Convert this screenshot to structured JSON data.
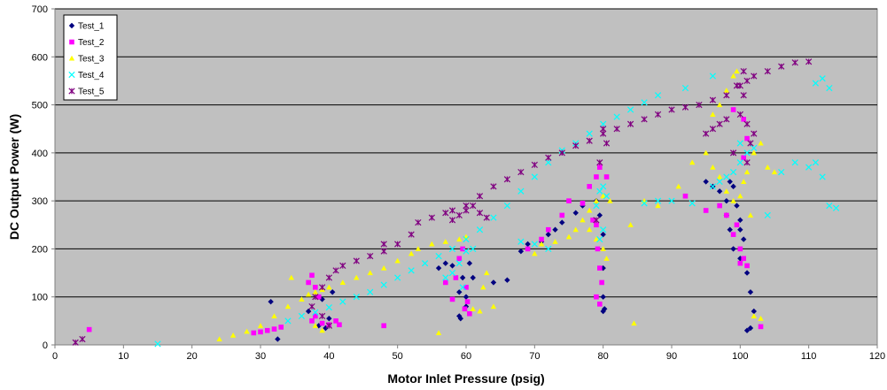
{
  "chart_data": {
    "type": "scatter",
    "title": "",
    "xlabel": "Motor Inlet Pressure (psig)",
    "ylabel": "DC Output Power (W)",
    "xlim": [
      0,
      120
    ],
    "ylim": [
      0,
      700
    ],
    "xticks": [
      0,
      10,
      20,
      30,
      40,
      50,
      60,
      70,
      80,
      90,
      100,
      110,
      120
    ],
    "yticks": [
      0,
      100,
      200,
      300,
      400,
      500,
      600,
      700
    ],
    "grid": "horizontal",
    "plot_background": "#c0c0c0",
    "legend_position": "top-left",
    "series": [
      {
        "name": "Test_1",
        "color": "#000080",
        "marker": "diamond",
        "points": [
          [
            32.5,
            12
          ],
          [
            31.5,
            90
          ],
          [
            37,
            70
          ],
          [
            38.5,
            40
          ],
          [
            39.5,
            35
          ],
          [
            40,
            55
          ],
          [
            39,
            95
          ],
          [
            40.5,
            110
          ],
          [
            56,
            160
          ],
          [
            57,
            170
          ],
          [
            58,
            165
          ],
          [
            59,
            110
          ],
          [
            59.5,
            140
          ],
          [
            60,
            100
          ],
          [
            59,
            60
          ],
          [
            59.2,
            55
          ],
          [
            60,
            80
          ],
          [
            61,
            140
          ],
          [
            60.5,
            170
          ],
          [
            64,
            130
          ],
          [
            66,
            135
          ],
          [
            68,
            195
          ],
          [
            69,
            210
          ],
          [
            71,
            215
          ],
          [
            72,
            230
          ],
          [
            73,
            240
          ],
          [
            74,
            255
          ],
          [
            76,
            275
          ],
          [
            77,
            290
          ],
          [
            79,
            300
          ],
          [
            79.5,
            270
          ],
          [
            80,
            230
          ],
          [
            80,
            160
          ],
          [
            80,
            100
          ],
          [
            80.2,
            75
          ],
          [
            80,
            70
          ],
          [
            95,
            340
          ],
          [
            96,
            330
          ],
          [
            97,
            320
          ],
          [
            98,
            300
          ],
          [
            98.5,
            340
          ],
          [
            99,
            330
          ],
          [
            98,
            270
          ],
          [
            98.5,
            240
          ],
          [
            99,
            200
          ],
          [
            100,
            240
          ],
          [
            100.5,
            220
          ],
          [
            100,
            180
          ],
          [
            101,
            150
          ],
          [
            101.5,
            110
          ],
          [
            102,
            70
          ],
          [
            101,
            30
          ],
          [
            101.5,
            35
          ],
          [
            100,
            260
          ],
          [
            99.5,
            290
          ]
        ]
      },
      {
        "name": "Test_2",
        "color": "#ff00ff",
        "marker": "square",
        "points": [
          [
            5,
            32
          ],
          [
            29,
            25
          ],
          [
            30,
            27
          ],
          [
            31,
            30
          ],
          [
            32,
            33
          ],
          [
            33,
            37
          ],
          [
            37,
            130
          ],
          [
            37.5,
            145
          ],
          [
            38,
            120
          ],
          [
            38.5,
            100
          ],
          [
            38,
            60
          ],
          [
            37.5,
            50
          ],
          [
            39,
            45
          ],
          [
            40,
            42
          ],
          [
            41,
            50
          ],
          [
            41.5,
            42
          ],
          [
            48,
            40
          ],
          [
            57,
            130
          ],
          [
            58,
            95
          ],
          [
            58.5,
            140
          ],
          [
            59,
            180
          ],
          [
            59.5,
            200
          ],
          [
            60,
            120
          ],
          [
            60.2,
            90
          ],
          [
            60.5,
            65
          ],
          [
            59.8,
            75
          ],
          [
            69,
            200
          ],
          [
            71,
            220
          ],
          [
            72,
            240
          ],
          [
            74,
            270
          ],
          [
            75,
            300
          ],
          [
            77,
            295
          ],
          [
            78,
            330
          ],
          [
            79,
            350
          ],
          [
            79.5,
            370
          ],
          [
            78.5,
            260
          ],
          [
            79,
            250
          ],
          [
            79.2,
            200
          ],
          [
            79.5,
            160
          ],
          [
            79.8,
            130
          ],
          [
            79,
            100
          ],
          [
            79.5,
            85
          ],
          [
            80.5,
            350
          ],
          [
            92,
            310
          ],
          [
            95,
            280
          ],
          [
            97,
            290
          ],
          [
            98,
            270
          ],
          [
            99,
            230
          ],
          [
            99.5,
            250
          ],
          [
            100,
            200
          ],
          [
            100.5,
            180
          ],
          [
            100,
            170
          ],
          [
            101,
            165
          ],
          [
            99,
            490
          ],
          [
            100.5,
            470
          ],
          [
            101,
            430
          ],
          [
            100.5,
            390
          ],
          [
            103,
            38
          ]
        ]
      },
      {
        "name": "Test_3",
        "color": "#ffff00",
        "marker": "triangle",
        "points": [
          [
            24,
            12
          ],
          [
            26,
            20
          ],
          [
            28,
            28
          ],
          [
            30,
            40
          ],
          [
            32,
            60
          ],
          [
            34,
            80
          ],
          [
            36,
            95
          ],
          [
            37,
            105
          ],
          [
            38,
            110
          ],
          [
            39,
            115
          ],
          [
            40,
            120
          ],
          [
            42,
            130
          ],
          [
            44,
            140
          ],
          [
            46,
            150
          ],
          [
            48,
            160
          ],
          [
            50,
            175
          ],
          [
            52,
            190
          ],
          [
            53,
            200
          ],
          [
            55,
            210
          ],
          [
            57,
            215
          ],
          [
            59,
            220
          ],
          [
            60,
            225
          ],
          [
            34.5,
            140
          ],
          [
            38,
            40
          ],
          [
            39,
            30
          ],
          [
            56,
            25
          ],
          [
            61,
            75
          ],
          [
            62,
            70
          ],
          [
            62.5,
            120
          ],
          [
            63,
            150
          ],
          [
            64,
            80
          ],
          [
            70,
            190
          ],
          [
            71,
            210
          ],
          [
            73,
            215
          ],
          [
            75,
            225
          ],
          [
            76,
            240
          ],
          [
            77,
            260
          ],
          [
            78,
            280
          ],
          [
            79,
            300
          ],
          [
            80,
            310
          ],
          [
            81,
            300
          ],
          [
            78,
            240
          ],
          [
            79,
            220
          ],
          [
            80,
            200
          ],
          [
            80.5,
            180
          ],
          [
            84,
            250
          ],
          [
            84.5,
            45
          ],
          [
            86,
            300
          ],
          [
            88,
            290
          ],
          [
            91,
            330
          ],
          [
            93,
            380
          ],
          [
            95,
            400
          ],
          [
            96,
            370
          ],
          [
            97,
            350
          ],
          [
            98,
            320
          ],
          [
            99,
            300
          ],
          [
            100,
            310
          ],
          [
            100.5,
            340
          ],
          [
            101,
            360
          ],
          [
            102,
            400
          ],
          [
            103,
            420
          ],
          [
            104,
            370
          ],
          [
            105,
            360
          ],
          [
            101.5,
            270
          ],
          [
            102,
            60
          ],
          [
            103,
            55
          ],
          [
            96,
            480
          ],
          [
            97,
            500
          ],
          [
            98,
            530
          ],
          [
            99,
            560
          ],
          [
            99.5,
            570
          ]
        ]
      },
      {
        "name": "Test_4",
        "color": "#00ffff",
        "marker": "x",
        "points": [
          [
            15,
            2
          ],
          [
            34,
            50
          ],
          [
            36,
            60
          ],
          [
            38,
            68
          ],
          [
            40,
            78
          ],
          [
            42,
            90
          ],
          [
            44,
            100
          ],
          [
            46,
            110
          ],
          [
            48,
            125
          ],
          [
            50,
            140
          ],
          [
            52,
            155
          ],
          [
            54,
            170
          ],
          [
            56,
            185
          ],
          [
            58,
            200
          ],
          [
            60,
            220
          ],
          [
            62,
            240
          ],
          [
            64,
            265
          ],
          [
            66,
            290
          ],
          [
            68,
            320
          ],
          [
            70,
            350
          ],
          [
            72,
            380
          ],
          [
            74,
            405
          ],
          [
            76,
            420
          ],
          [
            78,
            440
          ],
          [
            80,
            460
          ],
          [
            82,
            475
          ],
          [
            84,
            490
          ],
          [
            86,
            505
          ],
          [
            88,
            520
          ],
          [
            92,
            535
          ],
          [
            96,
            560
          ],
          [
            57,
            140
          ],
          [
            58,
            150
          ],
          [
            59,
            170
          ],
          [
            59.5,
            120
          ],
          [
            60,
            195
          ],
          [
            61,
            200
          ],
          [
            68,
            215
          ],
          [
            70,
            210
          ],
          [
            72,
            200
          ],
          [
            79,
            290
          ],
          [
            79.5,
            320
          ],
          [
            80,
            330
          ],
          [
            80.5,
            310
          ],
          [
            80,
            240
          ],
          [
            79.5,
            220
          ],
          [
            86,
            295
          ],
          [
            88,
            300
          ],
          [
            90,
            300
          ],
          [
            93,
            295
          ],
          [
            96,
            330
          ],
          [
            97,
            340
          ],
          [
            98,
            350
          ],
          [
            99,
            360
          ],
          [
            100,
            380
          ],
          [
            101,
            400
          ],
          [
            100,
            420
          ],
          [
            102,
            410
          ],
          [
            104,
            270
          ],
          [
            106,
            360
          ],
          [
            108,
            380
          ],
          [
            110,
            370
          ],
          [
            111,
            380
          ],
          [
            112,
            350
          ],
          [
            113,
            290
          ],
          [
            114,
            285
          ],
          [
            111,
            545
          ],
          [
            112,
            555
          ],
          [
            113,
            535
          ]
        ]
      },
      {
        "name": "Test_5",
        "color": "#800080",
        "marker": "asterisk",
        "points": [
          [
            3,
            5
          ],
          [
            4,
            12
          ],
          [
            37.5,
            80
          ],
          [
            38,
            100
          ],
          [
            39,
            120
          ],
          [
            40,
            140
          ],
          [
            41,
            155
          ],
          [
            42,
            165
          ],
          [
            44,
            175
          ],
          [
            46,
            185
          ],
          [
            48,
            195
          ],
          [
            50,
            210
          ],
          [
            52,
            230
          ],
          [
            53,
            255
          ],
          [
            55,
            265
          ],
          [
            57,
            275
          ],
          [
            58,
            280
          ],
          [
            60,
            290
          ],
          [
            62,
            310
          ],
          [
            64,
            330
          ],
          [
            66,
            345
          ],
          [
            68,
            360
          ],
          [
            70,
            375
          ],
          [
            72,
            390
          ],
          [
            74,
            400
          ],
          [
            76,
            415
          ],
          [
            78,
            425
          ],
          [
            80,
            440
          ],
          [
            82,
            450
          ],
          [
            84,
            460
          ],
          [
            86,
            470
          ],
          [
            88,
            480
          ],
          [
            90,
            490
          ],
          [
            92,
            495
          ],
          [
            94,
            500
          ],
          [
            96,
            510
          ],
          [
            98,
            520
          ],
          [
            100,
            540
          ],
          [
            102,
            560
          ],
          [
            104,
            570
          ],
          [
            106,
            580
          ],
          [
            108,
            588
          ],
          [
            110,
            590
          ],
          [
            39,
            60
          ],
          [
            40,
            40
          ],
          [
            48,
            210
          ],
          [
            58,
            260
          ],
          [
            59,
            270
          ],
          [
            60,
            280
          ],
          [
            61,
            290
          ],
          [
            63,
            265
          ],
          [
            62,
            275
          ],
          [
            79,
            260
          ],
          [
            79.5,
            380
          ],
          [
            80,
            450
          ],
          [
            80.5,
            420
          ],
          [
            95,
            440
          ],
          [
            96,
            450
          ],
          [
            97,
            460
          ],
          [
            98,
            470
          ],
          [
            99,
            400
          ],
          [
            100,
            480
          ],
          [
            101,
            550
          ],
          [
            101,
            460
          ],
          [
            101.5,
            420
          ],
          [
            101,
            380
          ],
          [
            102,
            440
          ],
          [
            100.5,
            520
          ],
          [
            99.5,
            540
          ],
          [
            100.5,
            570
          ]
        ]
      }
    ]
  }
}
